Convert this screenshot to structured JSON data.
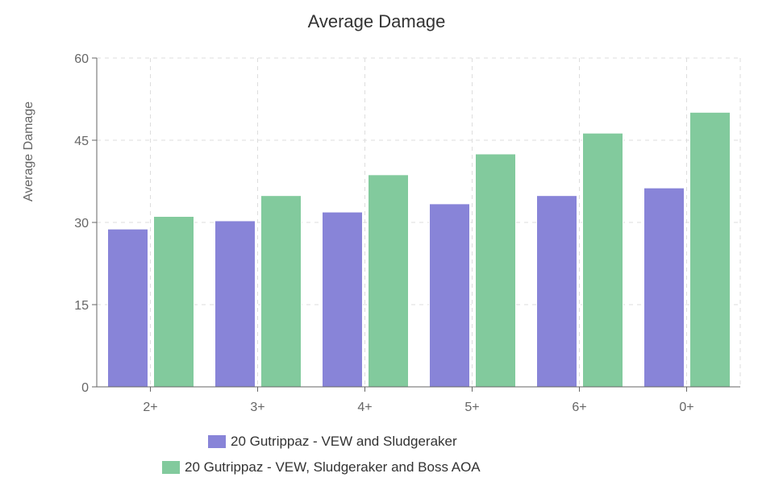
{
  "chart_data": {
    "type": "bar",
    "title": "Average Damage",
    "xlabel": "",
    "ylabel": "Average Damage",
    "ylim": [
      0,
      60
    ],
    "yticks": [
      0,
      15,
      30,
      45,
      60
    ],
    "grid": true,
    "legend_placement": "bottom",
    "categories": [
      "2+",
      "3+",
      "4+",
      "5+",
      "6+",
      "0+"
    ],
    "series": [
      {
        "name": "20 Gutrippaz - VEW and Sludgeraker",
        "color": "#8884d8",
        "values": [
          28.8,
          30.3,
          31.9,
          33.4,
          34.9,
          36.3
        ]
      },
      {
        "name": "20 Gutrippaz - VEW, Sludgeraker and Boss AOA",
        "color": "#82ca9d",
        "values": [
          31.1,
          34.9,
          38.7,
          42.5,
          46.3,
          50.1
        ]
      }
    ]
  }
}
